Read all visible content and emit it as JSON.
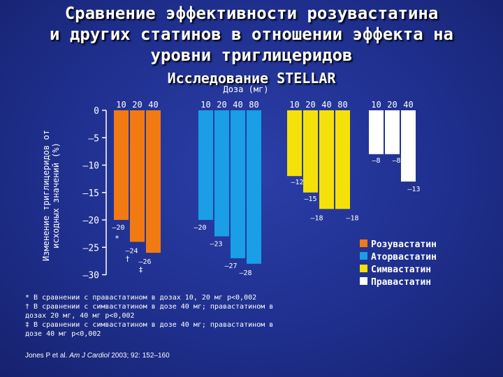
{
  "title_line1": "Сравнение эффективности розувастатина",
  "title_line2": "и других статинов в отношении эффекта на",
  "title_line3": "уровни триглицеридов",
  "subtitle": "Исследование STELLAR",
  "footnotes": [
    "* В сравнении с правастатином в дозах 10, 20 мг p<0,002",
    "† В сравнении с симвастатином в дозе 40 мг; правастатином в дозах 20 мг, 40 мг p<0,002",
    "‡ В сравнении с симвастатином в дозе 40 мг; правастатином в дозе 40 мг p<0,002"
  ],
  "source_prefix": "Jones P et al. ",
  "source_journal": "Am J Cardiol",
  "source_suffix": " 2003; 92: 152–160",
  "chart_data": {
    "type": "bar",
    "title": "Исследование STELLAR",
    "xlabel": "Доза (мг)",
    "ylabel": "Изменение триглицеридов от исходных значений (%)",
    "ylim": [
      -30,
      0
    ],
    "yticks": [
      0,
      -5,
      -10,
      -15,
      -20,
      -25,
      -30
    ],
    "ytick_labels": [
      "0",
      "–5",
      "–10",
      "–15",
      "–20",
      "–25",
      "–30"
    ],
    "series": [
      {
        "name": "Розувастатин",
        "color": "#f27a12",
        "doses": [
          "10",
          "20",
          "40"
        ],
        "values": [
          -20,
          -24,
          -26
        ],
        "labels": [
          "–20",
          "–24",
          "–26"
        ],
        "markers": [
          "*",
          "†",
          "‡"
        ]
      },
      {
        "name": "Аторвастатин",
        "color": "#1a9ee6",
        "doses": [
          "10",
          "20",
          "40",
          "80"
        ],
        "values": [
          -20,
          -23,
          -27,
          -28
        ],
        "labels": [
          "–20",
          "–23",
          "–27",
          "–28"
        ],
        "markers": [
          "",
          "",
          "",
          ""
        ]
      },
      {
        "name": "Симвастатин",
        "color": "#f5e10a",
        "doses": [
          "10",
          "20",
          "40",
          "80"
        ],
        "values": [
          -12,
          -15,
          -18,
          -18
        ],
        "labels": [
          "–12",
          "–15",
          "–18",
          "–18"
        ],
        "markers": [
          "",
          "",
          "",
          ""
        ]
      },
      {
        "name": "Правастатин",
        "color": "#ffffff",
        "doses": [
          "10",
          "20",
          "40"
        ],
        "values": [
          -8,
          -8,
          -13
        ],
        "labels": [
          "–8",
          "–8",
          "–13"
        ],
        "markers": [
          "",
          "",
          ""
        ]
      }
    ]
  }
}
